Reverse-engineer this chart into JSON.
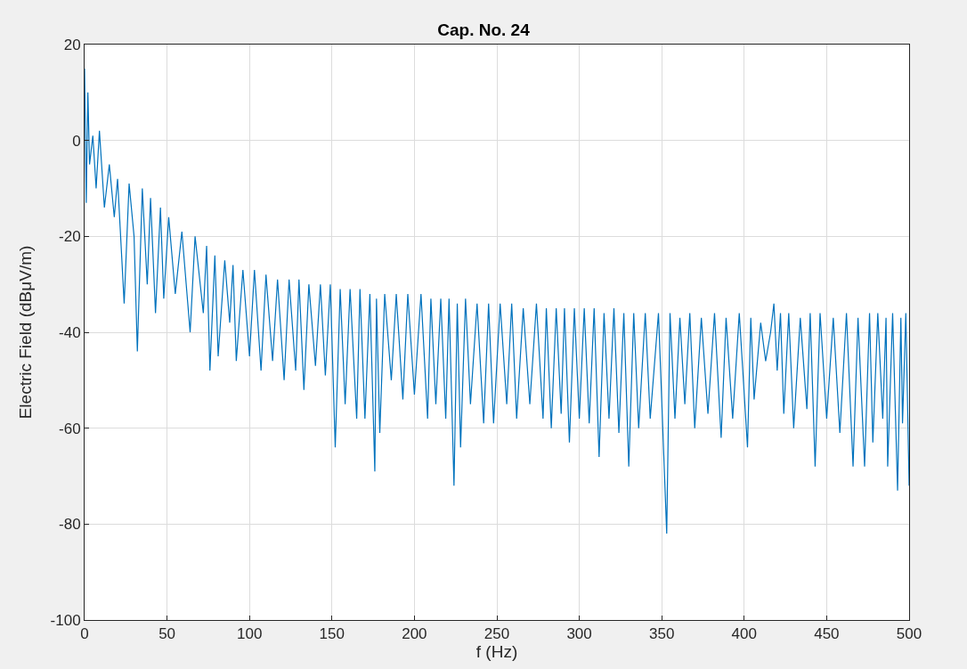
{
  "chart_data": {
    "type": "line",
    "title": "Cap. No. 24",
    "xlabel": "f (Hz)",
    "ylabel": "Electric Field (dBμV/m)",
    "xlim": [
      0,
      500
    ],
    "ylim": [
      -100,
      20
    ],
    "xticks": [
      0,
      50,
      100,
      150,
      200,
      250,
      300,
      350,
      400,
      450,
      500
    ],
    "yticks": [
      -100,
      -80,
      -60,
      -40,
      -20,
      0,
      20
    ],
    "grid": true,
    "series": [
      {
        "color": "#0072bd",
        "x": [
          0,
          1,
          2,
          3,
          5,
          7,
          9,
          12,
          15,
          18,
          20,
          24,
          27,
          30,
          32,
          35,
          38,
          40,
          43,
          46,
          48,
          51,
          55,
          59,
          64,
          67,
          72,
          74,
          76,
          79,
          81,
          85,
          88,
          90,
          92,
          96,
          100,
          103,
          107,
          110,
          114,
          117,
          121,
          124,
          128,
          130,
          133,
          136,
          140,
          143,
          146,
          149,
          152,
          155,
          158,
          161,
          165,
          167,
          170,
          173,
          176,
          177,
          179,
          182,
          186,
          189,
          193,
          196,
          200,
          204,
          208,
          210,
          213,
          216,
          219,
          221,
          224,
          226,
          228,
          231,
          234,
          238,
          242,
          245,
          248,
          252,
          256,
          259,
          262,
          266,
          270,
          274,
          278,
          280,
          283,
          286,
          289,
          291,
          294,
          297,
          300,
          303,
          306,
          309,
          312,
          315,
          318,
          321,
          324,
          327,
          330,
          333,
          336,
          340,
          343,
          348,
          353,
          355,
          358,
          361,
          364,
          367,
          370,
          374,
          378,
          382,
          386,
          389,
          393,
          397,
          402,
          404,
          406,
          410,
          413,
          416,
          418,
          420,
          422,
          424,
          427,
          430,
          434,
          438,
          440,
          443,
          446,
          450,
          454,
          458,
          462,
          466,
          469,
          473,
          476,
          478,
          481,
          484,
          486,
          487,
          490,
          493,
          495,
          496,
          498,
          500
        ],
        "values": [
          15,
          -13,
          10,
          -5,
          1,
          -10,
          2,
          -14,
          -5,
          -16,
          -8,
          -34,
          -9,
          -20,
          -44,
          -10,
          -30,
          -12,
          -36,
          -14,
          -33,
          -16,
          -32,
          -19,
          -40,
          -20,
          -36,
          -22,
          -48,
          -24,
          -45,
          -25,
          -38,
          -26,
          -46,
          -27,
          -45,
          -27,
          -48,
          -28,
          -46,
          -29,
          -50,
          -29,
          -48,
          -29,
          -52,
          -30,
          -47,
          -30,
          -49,
          -30,
          -64,
          -31,
          -55,
          -31,
          -58,
          -31,
          -58,
          -32,
          -69,
          -33,
          -61,
          -32,
          -50,
          -32,
          -54,
          -32,
          -53,
          -32,
          -58,
          -33,
          -55,
          -33,
          -58,
          -33,
          -72,
          -34,
          -64,
          -33,
          -55,
          -34,
          -59,
          -34,
          -59,
          -34,
          -55,
          -34,
          -58,
          -35,
          -55,
          -34,
          -58,
          -35,
          -60,
          -35,
          -57,
          -35,
          -63,
          -35,
          -58,
          -35,
          -59,
          -35,
          -66,
          -36,
          -58,
          -35,
          -61,
          -36,
          -68,
          -36,
          -60,
          -36,
          -58,
          -36,
          -82,
          -36,
          -58,
          -37,
          -55,
          -36,
          -60,
          -37,
          -57,
          -36,
          -62,
          -37,
          -58,
          -36,
          -64,
          -37,
          -54,
          -38,
          -46,
          -40,
          -34,
          -48,
          -36,
          -57,
          -36,
          -60,
          -37,
          -56,
          -36,
          -68,
          -36,
          -58,
          -37,
          -61,
          -36,
          -68,
          -37,
          -68,
          -36,
          -63,
          -36,
          -58,
          -37,
          -68,
          -36,
          -73,
          -37,
          -59,
          -36,
          -72
        ]
      }
    ]
  }
}
